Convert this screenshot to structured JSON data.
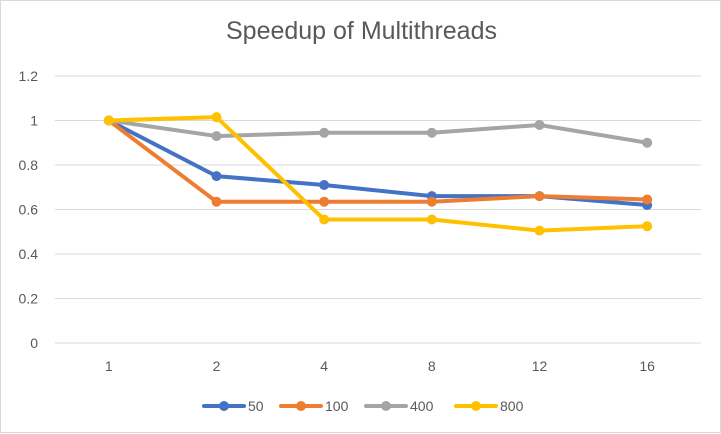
{
  "chart_data": {
    "type": "line",
    "title": "Speedup of Multithreads",
    "xlabel": "",
    "ylabel": "",
    "categories": [
      "1",
      "2",
      "4",
      "8",
      "12",
      "16"
    ],
    "ylim": [
      0,
      1.2
    ],
    "yticks": [
      "0",
      "0.2",
      "0.4",
      "0.6",
      "0.8",
      "1",
      "1.2"
    ],
    "grid": true,
    "legend": "bottom",
    "series": [
      {
        "name": "50",
        "color": "#4472C4",
        "values": [
          1.0,
          0.75,
          0.71,
          0.66,
          0.66,
          0.62
        ]
      },
      {
        "name": "100",
        "color": "#ED7D31",
        "values": [
          1.0,
          0.635,
          0.635,
          0.635,
          0.66,
          0.645
        ]
      },
      {
        "name": "400",
        "color": "#A5A5A5",
        "values": [
          1.0,
          0.93,
          0.945,
          0.945,
          0.98,
          0.9
        ]
      },
      {
        "name": "800",
        "color": "#FFC000",
        "values": [
          1.0,
          1.015,
          0.555,
          0.555,
          0.505,
          0.525
        ]
      }
    ]
  }
}
